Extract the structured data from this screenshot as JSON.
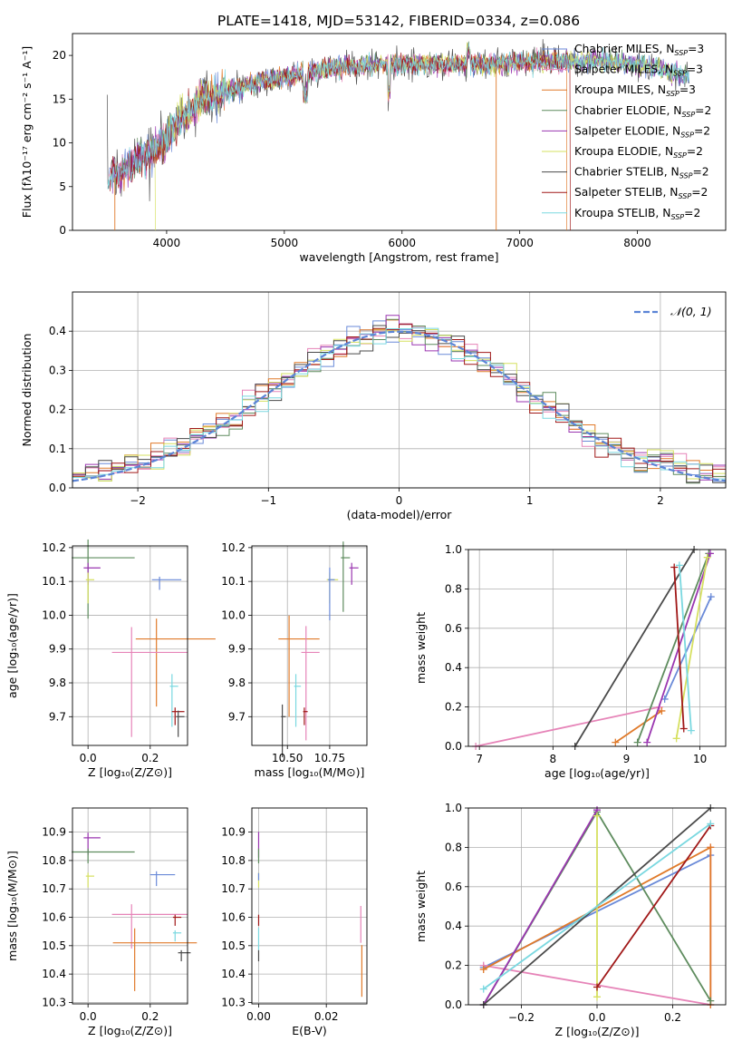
{
  "chart_data": [
    {
      "type": "line",
      "title": "PLATE=1418, MJD=53142, FIBERID=0334, z=0.086",
      "xlabel": "wavelength [Angstrom, rest frame]",
      "ylabel": "Flux [fλ10⁻¹⁷ erg cm⁻² s⁻¹ A⁻¹]",
      "xlim": [
        3200,
        8750
      ],
      "ylim": [
        0,
        22.5
      ],
      "xticks": [
        4000,
        5000,
        6000,
        7000,
        8000
      ],
      "yticks": [
        0,
        5,
        10,
        15,
        20
      ],
      "grid": false,
      "legend_position": "right",
      "series": [
        {
          "name": "Chabrier MILES, N_SSP=3",
          "color": "#6a8ad8"
        },
        {
          "name": "Salpeter MILES, N_SSP=3",
          "color": "#e684b8"
        },
        {
          "name": "Kroupa MILES, N_SSP=3",
          "color": "#e07a2a"
        },
        {
          "name": "Chabrier ELODIE, N_SSP=2",
          "color": "#5e8c5e"
        },
        {
          "name": "Salpeter ELODIE, N_SSP=2",
          "color": "#9a36b0"
        },
        {
          "name": "Kroupa ELODIE, N_SSP=2",
          "color": "#d6e060"
        },
        {
          "name": "Chabrier STELIB, N_SSP=2",
          "color": "#4a4a4a"
        },
        {
          "name": "Salpeter STELIB, N_SSP=2",
          "color": "#a01818"
        },
        {
          "name": "Kroupa STELIB, N_SSP=2",
          "color": "#7ad8e0"
        }
      ],
      "envelope": {
        "x": [
          3500,
          3600,
          3700,
          3800,
          3900,
          4000,
          4100,
          4200,
          4300,
          4400,
          4500,
          4600,
          4800,
          5000,
          5200,
          5400,
          5600,
          5800,
          6000,
          6200,
          6400,
          6600,
          6800,
          7000,
          7200,
          7400,
          7600,
          7800,
          8000,
          8200,
          8400
        ],
        "y": [
          6.0,
          6.5,
          7.5,
          8.5,
          9.0,
          10.5,
          12.5,
          13.5,
          15.0,
          15.5,
          16.0,
          16.3,
          17.0,
          17.5,
          18.0,
          18.5,
          18.8,
          19.0,
          19.0,
          19.0,
          19.0,
          19.0,
          19.0,
          19.2,
          19.3,
          19.3,
          19.4,
          19.2,
          19.0,
          18.5,
          17.5
        ]
      }
    },
    {
      "type": "bar",
      "xlabel": "(data-model)/error",
      "ylabel": "Normed distribution",
      "xlim": [
        -2.5,
        2.5
      ],
      "ylim": [
        0,
        0.5
      ],
      "xticks": [
        -2,
        -1,
        0,
        1,
        2
      ],
      "yticks": [
        0.0,
        0.1,
        0.2,
        0.3,
        0.4
      ],
      "grid": true,
      "legend_position": "top-right",
      "legend": [
        "𝒩(0, 1)"
      ],
      "reference_curve": {
        "name": "𝒩(0, 1)",
        "mean": 0,
        "std": 1,
        "color": "#5b84d6"
      },
      "bin_width": 0.1
    },
    {
      "type": "scatter",
      "xlabel": "Z [log₁₀(Z/Z⊙)]",
      "ylabel": "age  [log₁₀(age/yr)]",
      "xlim": [
        -0.05,
        0.32
      ],
      "ylim": [
        9.615,
        10.205
      ],
      "xticks": [
        "0.0",
        "0.2"
      ],
      "yticks": [
        "9.7",
        "9.8",
        "9.9",
        "10.0",
        "10.1",
        "10.2"
      ],
      "points": [
        {
          "x": 0.0,
          "y": 10.17,
          "xerr": 0.15,
          "yerr": 0.18,
          "color": "#5e8c5e"
        },
        {
          "x": 0.0,
          "y": 10.14,
          "xerr": 0.04,
          "yerr": 0.05,
          "color": "#9a36b0"
        },
        {
          "x": 0.0,
          "y": 10.105,
          "xerr": 0.02,
          "yerr": 0.07,
          "color": "#d6e060"
        },
        {
          "x": 0.23,
          "y": 10.105,
          "xerr": 0.07,
          "yerr": 0.03,
          "color": "#6a8ad8"
        },
        {
          "x": 0.22,
          "y": 9.93,
          "xerr": 0.19,
          "yerr": 0.2,
          "color": "#e07a2a"
        },
        {
          "x": 0.14,
          "y": 9.89,
          "xerr": 0.18,
          "yerr": 0.25,
          "color": "#e684b8"
        },
        {
          "x": 0.27,
          "y": 9.79,
          "xerr": 0.02,
          "yerr": 0.12,
          "color": "#7ad8e0"
        },
        {
          "x": 0.28,
          "y": 9.715,
          "xerr": 0.03,
          "yerr": 0.04,
          "color": "#a01818"
        },
        {
          "x": 0.29,
          "y": 9.7,
          "xerr": 0.02,
          "yerr": 0.06,
          "color": "#4a4a4a"
        }
      ]
    },
    {
      "type": "scatter",
      "xlabel": "mass [log₁₀(M/M⊙)]",
      "ylabel": "",
      "xlim": [
        10.29,
        10.97
      ],
      "ylim": [
        9.615,
        10.205
      ],
      "xticks": [
        "10.50",
        "10.75"
      ],
      "yticks": [
        "9.7",
        "9.8",
        "9.9",
        "10.0",
        "10.1",
        "10.2"
      ],
      "points": [
        {
          "x": 10.83,
          "y": 10.17,
          "xerr": 0.04,
          "yerr": 0.16,
          "color": "#5e8c5e"
        },
        {
          "x": 10.88,
          "y": 10.14,
          "xerr": 0.04,
          "yerr": 0.05,
          "color": "#9a36b0"
        },
        {
          "x": 10.75,
          "y": 10.105,
          "xerr": 0.05,
          "yerr": 0.07,
          "color": "#d6e060"
        },
        {
          "x": 10.75,
          "y": 10.105,
          "xerr": 0.03,
          "yerr": 0.12,
          "color": "#6a8ad8"
        },
        {
          "x": 10.51,
          "y": 9.93,
          "xerr": 0.18,
          "yerr": 0.23,
          "color": "#e07a2a"
        },
        {
          "x": 10.61,
          "y": 9.89,
          "xerr": 0.08,
          "yerr": 0.26,
          "color": "#e684b8"
        },
        {
          "x": 10.55,
          "y": 9.79,
          "xerr": 0.03,
          "yerr": 0.12,
          "color": "#7ad8e0"
        },
        {
          "x": 10.6,
          "y": 9.715,
          "xerr": 0.02,
          "yerr": 0.04,
          "color": "#a01818"
        },
        {
          "x": 10.47,
          "y": 9.7,
          "xerr": 0.02,
          "yerr": 0.12,
          "color": "#4a4a4a"
        }
      ]
    },
    {
      "type": "line",
      "xlabel": "age  [log₁₀(age/yr)]",
      "ylabel": "mass weight",
      "xlim": [
        6.85,
        10.35
      ],
      "ylim": [
        0,
        1
      ],
      "xticks": [
        "7",
        "8",
        "9",
        "10"
      ],
      "yticks": [
        "0.0",
        "0.2",
        "0.4",
        "0.6",
        "0.8",
        "1.0"
      ],
      "grid": true,
      "series": [
        {
          "color": "#6a8ad8",
          "x": [
            9.52,
            10.15
          ],
          "y": [
            0.24,
            0.76
          ]
        },
        {
          "color": "#e684b8",
          "x": [
            6.95,
            9.45
          ],
          "y": [
            0.0,
            0.2
          ]
        },
        {
          "color": "#e07a2a",
          "x": [
            8.85,
            9.48
          ],
          "y": [
            0.02,
            0.18
          ]
        },
        {
          "color": "#5e8c5e",
          "x": [
            9.15,
            10.12
          ],
          "y": [
            0.02,
            0.98
          ]
        },
        {
          "color": "#9a36b0",
          "x": [
            9.28,
            10.14
          ],
          "y": [
            0.02,
            0.98
          ]
        },
        {
          "color": "#d6e060",
          "x": [
            9.68,
            10.1
          ],
          "y": [
            0.04,
            0.96
          ]
        },
        {
          "color": "#4a4a4a",
          "x": [
            8.3,
            9.92
          ],
          "y": [
            0.0,
            1.0
          ]
        },
        {
          "color": "#a01818",
          "x": [
            9.78,
            9.65
          ],
          "y": [
            0.09,
            0.91
          ]
        },
        {
          "color": "#7ad8e0",
          "x": [
            9.88,
            9.72
          ],
          "y": [
            0.08,
            0.92
          ]
        }
      ]
    },
    {
      "type": "scatter",
      "xlabel": "Z [log₁₀(Z/Z⊙)]",
      "ylabel": "mass [log₁₀(M/M⊙)]",
      "xlim": [
        -0.05,
        0.32
      ],
      "ylim": [
        10.295,
        10.985
      ],
      "xticks": [
        "0.0",
        "0.2"
      ],
      "yticks": [
        "10.3",
        "10.4",
        "10.5",
        "10.6",
        "10.7",
        "10.8",
        "10.9"
      ],
      "points": [
        {
          "x": 0.0,
          "y": 10.88,
          "xerr": 0.04,
          "yerr": 0.06,
          "color": "#9a36b0"
        },
        {
          "x": 0.0,
          "y": 10.83,
          "xerr": 0.15,
          "yerr": 0.04,
          "color": "#5e8c5e"
        },
        {
          "x": 0.0,
          "y": 10.745,
          "xerr": 0.02,
          "yerr": 0.04,
          "color": "#d6e060"
        },
        {
          "x": 0.22,
          "y": 10.75,
          "xerr": 0.06,
          "yerr": 0.04,
          "color": "#6a8ad8"
        },
        {
          "x": 0.14,
          "y": 10.61,
          "xerr": 0.18,
          "yerr": 0.12,
          "color": "#e684b8"
        },
        {
          "x": 0.28,
          "y": 10.6,
          "xerr": 0.02,
          "yerr": 0.03,
          "color": "#a01818"
        },
        {
          "x": 0.28,
          "y": 10.545,
          "xerr": 0.02,
          "yerr": 0.03,
          "color": "#7ad8e0"
        },
        {
          "x": 0.15,
          "y": 10.51,
          "xerr": 0.2,
          "yerr": 0.17,
          "color": "#e07a2a"
        },
        {
          "x": 0.3,
          "y": 10.475,
          "xerr": 0.03,
          "yerr": 0.03,
          "color": "#4a4a4a"
        }
      ]
    },
    {
      "type": "scatter",
      "xlabel": "E(B-V)",
      "ylabel": "",
      "xlim": [
        -0.002,
        0.032
      ],
      "ylim": [
        10.295,
        10.985
      ],
      "xticks": [
        "0.00",
        "0.02"
      ],
      "yticks": [
        "10.3",
        "10.4",
        "10.5",
        "10.6",
        "10.7",
        "10.8",
        "10.9"
      ],
      "points": [
        {
          "x": 0.0,
          "y": 10.88,
          "yerr": 0.07,
          "color": "#9a36b0"
        },
        {
          "x": 0.0,
          "y": 10.83,
          "yerr": 0.04,
          "color": "#5e8c5e"
        },
        {
          "x": 0.0,
          "y": 10.745,
          "yerr": 0.04,
          "color": "#d6e060"
        },
        {
          "x": 0.0,
          "y": 10.75,
          "yerr": 0.02,
          "color": "#6a8ad8"
        },
        {
          "x": 0.0,
          "y": 10.6,
          "yerr": 0.03,
          "color": "#a01818"
        },
        {
          "x": 0.0,
          "y": 10.545,
          "yerr": 0.06,
          "color": "#7ad8e0"
        },
        {
          "x": 0.0,
          "y": 10.475,
          "yerr": 0.03,
          "color": "#4a4a4a"
        },
        {
          "x": 0.0302,
          "y": 10.61,
          "yerr": 0.1,
          "color": "#e684b8"
        },
        {
          "x": 0.0305,
          "y": 10.46,
          "yerr": 0.14,
          "color": "#e07a2a"
        }
      ]
    },
    {
      "type": "line",
      "xlabel": "Z [log₁₀(Z/Z⊙)]",
      "ylabel": "mass weight",
      "xlim": [
        -0.34,
        0.34
      ],
      "ylim": [
        0,
        1
      ],
      "xticks": [
        "−0.2",
        "0.0",
        "0.2"
      ],
      "yticks": [
        "0.0",
        "0.2",
        "0.4",
        "0.6",
        "0.8",
        "1.0"
      ],
      "grid": true,
      "series": [
        {
          "color": "#6a8ad8",
          "x": [
            -0.3,
            0.3
          ],
          "y": [
            0.19,
            0.76
          ]
        },
        {
          "color": "#e684b8",
          "x": [
            -0.3,
            0.3,
            0.3
          ],
          "y": [
            0.2,
            0.0,
            0.8
          ]
        },
        {
          "color": "#e07a2a",
          "x": [
            -0.3,
            0.3,
            0.3
          ],
          "y": [
            0.18,
            0.8,
            0.0
          ]
        },
        {
          "color": "#5e8c5e",
          "x": [
            -0.3,
            0.0,
            0.3
          ],
          "y": [
            0.0,
            0.98,
            0.02
          ]
        },
        {
          "color": "#9a36b0",
          "x": [
            -0.3,
            0.0
          ],
          "y": [
            0.0,
            0.99
          ]
        },
        {
          "color": "#d6e060",
          "x": [
            0.0,
            0.0
          ],
          "y": [
            0.96,
            0.04
          ]
        },
        {
          "color": "#4a4a4a",
          "x": [
            -0.3,
            0.3
          ],
          "y": [
            0.0,
            1.0
          ]
        },
        {
          "color": "#a01818",
          "x": [
            0.0,
            0.3
          ],
          "y": [
            0.09,
            0.91
          ]
        },
        {
          "color": "#7ad8e0",
          "x": [
            -0.3,
            0.3
          ],
          "y": [
            0.08,
            0.92
          ]
        }
      ]
    }
  ]
}
